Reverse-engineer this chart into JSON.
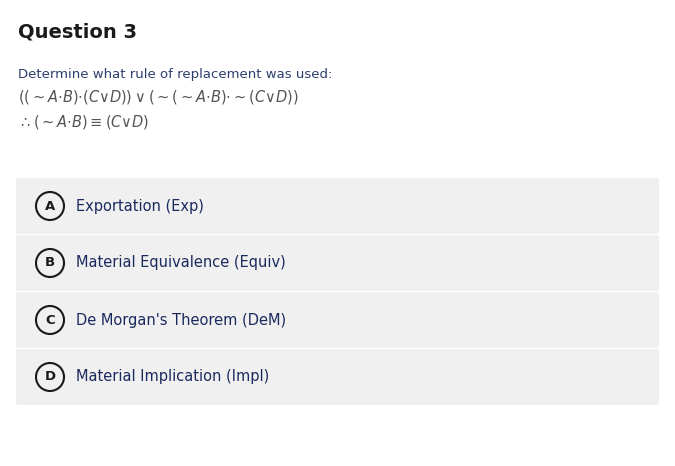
{
  "title": "Question 3",
  "instruction": "Determine what rule of replacement was used:",
  "formula_line1_math": "((\\sim A \\cdot B) \\cdot (C \\vee D)) \\vee (\\sim (\\sim A \\cdot B) \\cdot \\sim (C \\vee D))",
  "formula_line2_math": "\\therefore (\\sim A \\cdot B) \\equiv (C \\vee D)",
  "options": [
    {
      "label": "A",
      "text": "Exportation (Exp)"
    },
    {
      "label": "B",
      "text": "Material Equivalence (Equiv)"
    },
    {
      "label": "C",
      "text": "De Morgan's Theorem (DeM)"
    },
    {
      "label": "D",
      "text": "Material Implication (Impl)"
    }
  ],
  "bg_color": "#ffffff",
  "option_bg_color": "#f0f0f0",
  "title_color": "#1a1a1a",
  "instruction_color": "#2c3e6b",
  "formula_color": "#555555",
  "option_text_color": "#1a2a5e",
  "circle_edge_color": "#1a1a1a",
  "title_fontsize": 14,
  "instruction_fontsize": 9.5,
  "formula_fontsize": 10.5,
  "option_fontsize": 10.5,
  "option_label_fontsize": 9.5
}
